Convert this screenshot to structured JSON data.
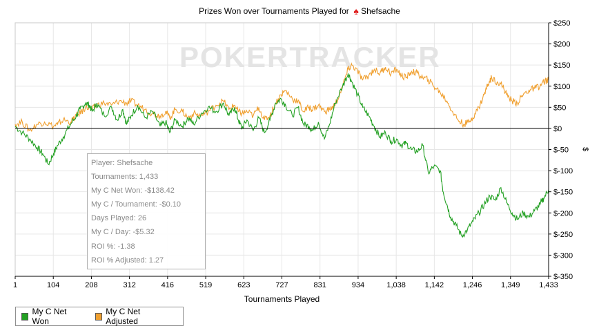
{
  "title_prefix": "Prizes Won over Tournaments Played for",
  "player_name": "Shefsache",
  "icons": {
    "title_icon": "spade-icon"
  },
  "watermark": "POKERTRACKER",
  "colors": {
    "net_won": "#22a022",
    "net_adjusted": "#f0a030",
    "zero_line": "#000000",
    "grid": "#e6e6e6"
  },
  "infobox": {
    "player": "Player: Shefsache",
    "tournaments": "Tournaments: 1,433",
    "net_won": "My C Net Won: -$138.42",
    "per_tournament": "My C / Tournament: -$0.10",
    "days_played": "Days Played: 26",
    "per_day": "My C / Day: -$5.32",
    "roi": "ROI %: -1.38",
    "roi_adjusted": "ROI % Adjusted: 1.27"
  },
  "legend": {
    "net_won": "My C Net Won",
    "net_adjusted": "My C Net Adjusted"
  },
  "chart_data": {
    "type": "line",
    "title": "Prizes Won over Tournaments Played for Shefsache",
    "xlabel": "Tournaments Played",
    "ylabel": "$",
    "xlim": [
      1,
      1433
    ],
    "ylim": [
      -350,
      250
    ],
    "x_ticks": [
      "1",
      "104",
      "208",
      "312",
      "416",
      "519",
      "623",
      "727",
      "831",
      "934",
      "1,038",
      "1,142",
      "1,246",
      "1,349",
      "1,433"
    ],
    "y_ticks": [
      "$250",
      "$200",
      "$150",
      "$100",
      "$50",
      "$0",
      "$-50",
      "$-100",
      "$-150",
      "$-200",
      "$-250",
      "$-300",
      "$-350"
    ],
    "grid": true,
    "legend_position": "bottom-left",
    "series": [
      {
        "name": "My C Net Won",
        "points": [
          [
            1,
            5
          ],
          [
            20,
            -10
          ],
          [
            40,
            -25
          ],
          [
            60,
            -45
          ],
          [
            75,
            -60
          ],
          [
            90,
            -85
          ],
          [
            104,
            -60
          ],
          [
            115,
            -40
          ],
          [
            130,
            -20
          ],
          [
            150,
            10
          ],
          [
            165,
            30
          ],
          [
            175,
            45
          ],
          [
            190,
            60
          ],
          [
            200,
            55
          ],
          [
            208,
            40
          ],
          [
            220,
            60
          ],
          [
            240,
            30
          ],
          [
            260,
            50
          ],
          [
            275,
            20
          ],
          [
            290,
            45
          ],
          [
            300,
            10
          ],
          [
            312,
            30
          ],
          [
            330,
            55
          ],
          [
            350,
            25
          ],
          [
            370,
            40
          ],
          [
            390,
            5
          ],
          [
            405,
            15
          ],
          [
            416,
            -10
          ],
          [
            430,
            20
          ],
          [
            450,
            5
          ],
          [
            465,
            25
          ],
          [
            480,
            10
          ],
          [
            500,
            35
          ],
          [
            519,
            50
          ],
          [
            540,
            40
          ],
          [
            560,
            60
          ],
          [
            575,
            30
          ],
          [
            590,
            50
          ],
          [
            600,
            20
          ],
          [
            610,
            0
          ],
          [
            623,
            20
          ],
          [
            640,
            -5
          ],
          [
            655,
            25
          ],
          [
            670,
            -10
          ],
          [
            685,
            20
          ],
          [
            700,
            60
          ],
          [
            715,
            70
          ],
          [
            727,
            55
          ],
          [
            745,
            30
          ],
          [
            760,
            50
          ],
          [
            775,
            10
          ],
          [
            790,
            5
          ],
          [
            800,
            -5
          ],
          [
            815,
            15
          ],
          [
            831,
            -25
          ],
          [
            845,
            10
          ],
          [
            860,
            60
          ],
          [
            880,
            100
          ],
          [
            895,
            130
          ],
          [
            905,
            110
          ],
          [
            920,
            80
          ],
          [
            934,
            50
          ],
          [
            950,
            30
          ],
          [
            965,
            5
          ],
          [
            980,
            -20
          ],
          [
            995,
            -10
          ],
          [
            1010,
            -30
          ],
          [
            1025,
            -25
          ],
          [
            1038,
            -40
          ],
          [
            1050,
            -35
          ],
          [
            1065,
            -50
          ],
          [
            1080,
            -55
          ],
          [
            1095,
            -40
          ],
          [
            1110,
            -105
          ],
          [
            1125,
            -90
          ],
          [
            1142,
            -100
          ],
          [
            1150,
            -150
          ],
          [
            1160,
            -180
          ],
          [
            1170,
            -210
          ],
          [
            1185,
            -230
          ],
          [
            1200,
            -255
          ],
          [
            1215,
            -240
          ],
          [
            1230,
            -220
          ],
          [
            1246,
            -200
          ],
          [
            1260,
            -180
          ],
          [
            1275,
            -160
          ],
          [
            1290,
            -170
          ],
          [
            1305,
            -140
          ],
          [
            1320,
            -175
          ],
          [
            1335,
            -200
          ],
          [
            1349,
            -215
          ],
          [
            1365,
            -200
          ],
          [
            1380,
            -210
          ],
          [
            1395,
            -195
          ],
          [
            1410,
            -180
          ],
          [
            1420,
            -165
          ],
          [
            1433,
            -145
          ]
        ]
      },
      {
        "name": "My C Net Adjusted",
        "points": [
          [
            1,
            10
          ],
          [
            20,
            15
          ],
          [
            40,
            -5
          ],
          [
            60,
            10
          ],
          [
            80,
            15
          ],
          [
            104,
            5
          ],
          [
            115,
            10
          ],
          [
            130,
            20
          ],
          [
            150,
            15
          ],
          [
            165,
            30
          ],
          [
            180,
            40
          ],
          [
            190,
            50
          ],
          [
            208,
            45
          ],
          [
            220,
            55
          ],
          [
            240,
            60
          ],
          [
            260,
            55
          ],
          [
            280,
            65
          ],
          [
            300,
            60
          ],
          [
            312,
            65
          ],
          [
            330,
            55
          ],
          [
            350,
            45
          ],
          [
            370,
            35
          ],
          [
            390,
            30
          ],
          [
            405,
            40
          ],
          [
            416,
            25
          ],
          [
            430,
            45
          ],
          [
            450,
            40
          ],
          [
            465,
            25
          ],
          [
            480,
            35
          ],
          [
            500,
            30
          ],
          [
            519,
            40
          ],
          [
            540,
            55
          ],
          [
            560,
            65
          ],
          [
            575,
            45
          ],
          [
            590,
            55
          ],
          [
            600,
            40
          ],
          [
            610,
            35
          ],
          [
            623,
            40
          ],
          [
            640,
            30
          ],
          [
            655,
            50
          ],
          [
            670,
            20
          ],
          [
            685,
            30
          ],
          [
            700,
            60
          ],
          [
            715,
            80
          ],
          [
            727,
            90
          ],
          [
            745,
            70
          ],
          [
            760,
            65
          ],
          [
            775,
            40
          ],
          [
            790,
            50
          ],
          [
            800,
            45
          ],
          [
            815,
            55
          ],
          [
            831,
            40
          ],
          [
            845,
            45
          ],
          [
            860,
            55
          ],
          [
            880,
            100
          ],
          [
            895,
            140
          ],
          [
            905,
            150
          ],
          [
            920,
            135
          ],
          [
            934,
            115
          ],
          [
            950,
            125
          ],
          [
            965,
            140
          ],
          [
            980,
            130
          ],
          [
            995,
            145
          ],
          [
            1010,
            130
          ],
          [
            1025,
            140
          ],
          [
            1038,
            125
          ],
          [
            1050,
            120
          ],
          [
            1065,
            135
          ],
          [
            1080,
            130
          ],
          [
            1095,
            120
          ],
          [
            1110,
            115
          ],
          [
            1125,
            100
          ],
          [
            1142,
            85
          ],
          [
            1160,
            65
          ],
          [
            1175,
            40
          ],
          [
            1190,
            20
          ],
          [
            1205,
            10
          ],
          [
            1220,
            15
          ],
          [
            1235,
            35
          ],
          [
            1246,
            50
          ],
          [
            1260,
            80
          ],
          [
            1270,
            105
          ],
          [
            1280,
            120
          ],
          [
            1295,
            110
          ],
          [
            1310,
            100
          ],
          [
            1320,
            80
          ],
          [
            1335,
            65
          ],
          [
            1349,
            60
          ],
          [
            1365,
            80
          ],
          [
            1380,
            90
          ],
          [
            1395,
            95
          ],
          [
            1410,
            100
          ],
          [
            1420,
            110
          ],
          [
            1433,
            115
          ]
        ]
      }
    ]
  }
}
